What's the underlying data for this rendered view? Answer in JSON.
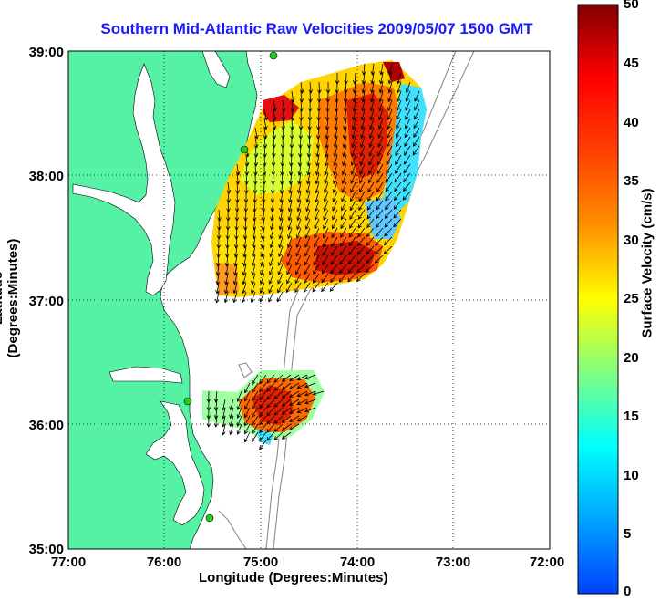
{
  "title": "Southern Mid-Atlantic Raw Velocities 2009/05/07 1500 GMT",
  "axes": {
    "xlabel": "Longitude (Degrees:Minutes)",
    "ylabel": "Latitude (Degrees:Minutes)",
    "x_ticks": [
      "77:00",
      "76:00",
      "75:00",
      "74:00",
      "73:00",
      "72:00"
    ],
    "y_ticks": [
      "39:00",
      "38:00",
      "37:00",
      "36:00",
      "35:00"
    ],
    "xlim": [
      -77,
      -72
    ],
    "ylim": [
      35,
      39
    ],
    "grid": true
  },
  "colorbar": {
    "label": "Surface Velocity (cm/s)",
    "ticks": [
      "50",
      "45",
      "40",
      "35",
      "30",
      "25",
      "20",
      "15",
      "10",
      "5",
      "0"
    ],
    "range": [
      0,
      50
    ],
    "colormap": "jet"
  },
  "colors": {
    "land": "#55f2a6",
    "title": "#1a1aff",
    "bathymetry": "#8c8c8c",
    "arrows": "#000000",
    "station": "#22cc22"
  }
}
